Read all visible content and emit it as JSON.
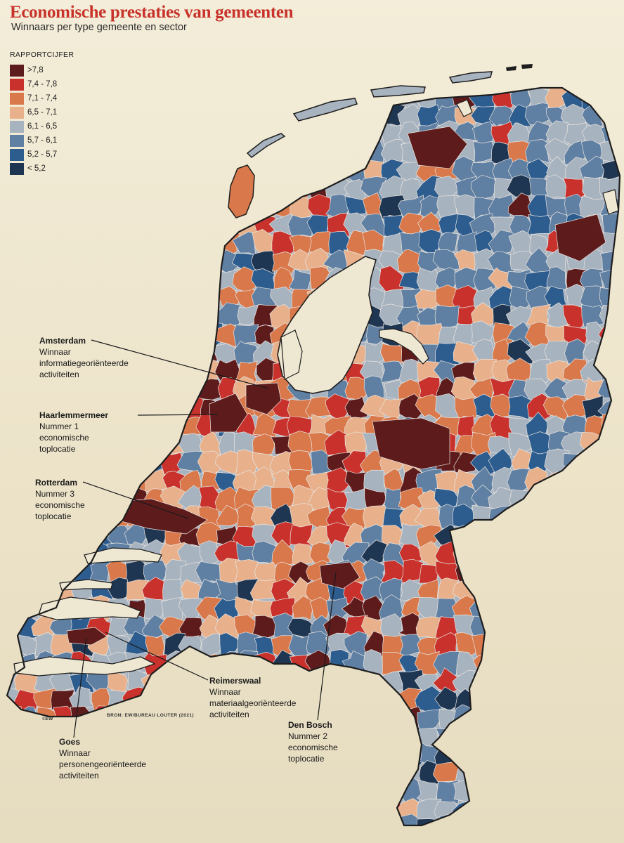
{
  "title": "Economische prestaties van gemeenten",
  "subtitle": "Winnaars per type gemeente en sector",
  "legend": {
    "title": "RAPPORTCIJFER",
    "items": [
      {
        "label": ">7,8",
        "color": "#5e1b1c"
      },
      {
        "label": "7,4 - 7,8",
        "color": "#c9312c"
      },
      {
        "label": "7,1 - 7,4",
        "color": "#d9784b"
      },
      {
        "label": "6,5 - 7,1",
        "color": "#e8b18c"
      },
      {
        "label": "6,1 - 6,5",
        "color": "#a8b3c0"
      },
      {
        "label": "5,7 - 6,1",
        "color": "#5f7fa3"
      },
      {
        "label": "5,2 - 5,7",
        "color": "#2d5c8f"
      },
      {
        "label": "< 5,2",
        "color": "#1f3653"
      }
    ]
  },
  "annotations": [
    {
      "name": "Amsterdam",
      "lines": [
        "Winnaar",
        "informatiegeoriënteerde",
        "activiteiten"
      ]
    },
    {
      "name": "Haarlemmermeer",
      "lines": [
        "Nummer 1",
        "economische",
        "toplocatie"
      ]
    },
    {
      "name": "Rotterdam",
      "lines": [
        "Nummer 3",
        "economische",
        "toplocatie"
      ]
    },
    {
      "name": "Reimerswaal",
      "lines": [
        "Winnaar",
        "materiaalgeoriënteerde",
        "activiteiten"
      ]
    },
    {
      "name": "Den Bosch",
      "lines": [
        "Nummer 2",
        "economische",
        "toplocatie"
      ]
    },
    {
      "name": "Goes",
      "lines": [
        "Winnaar",
        "personengeoriënteerde",
        "activiteiten"
      ]
    }
  ],
  "source": "BRON: EW/BUREAU LOUTER (2021)",
  "credit": "©EW",
  "water_color": "#eee8d3",
  "outline_color": "#1e1e1e"
}
